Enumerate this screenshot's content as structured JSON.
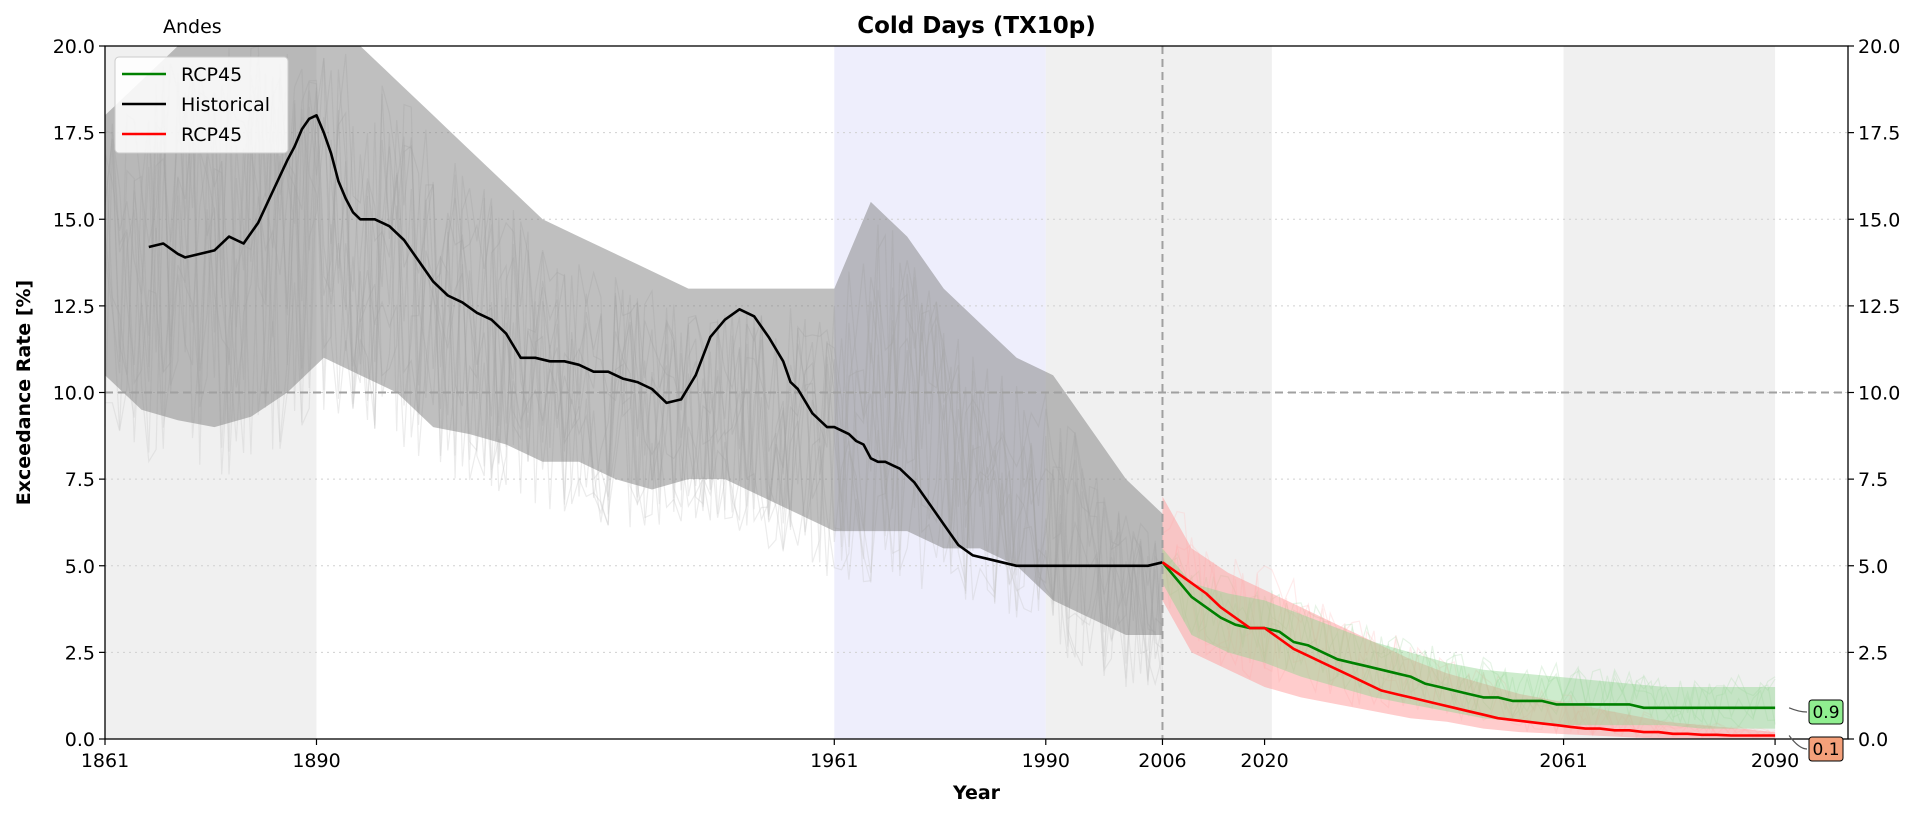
{
  "chart_data": {
    "type": "line",
    "title": "Cold Days (TX10p)",
    "region": "Andes",
    "xlabel": "Year",
    "ylabel": "Exceedance Rate [%]",
    "xlim": [
      1861,
      2100
    ],
    "ylim": [
      0,
      20
    ],
    "xticks": [
      "1861",
      "1890",
      "1961",
      "1990",
      "2006",
      "2020",
      "2061",
      "2090"
    ],
    "yticks": [
      "0.0",
      "2.5",
      "5.0",
      "7.5",
      "10.0",
      "12.5",
      "15.0",
      "17.5",
      "20.0"
    ],
    "grid": "horizontal-dotted",
    "reference_line": 10.0,
    "scenario_start_year": 2006,
    "legend": {
      "placement": "top-left",
      "entries": [
        {
          "name": "RCP45",
          "color": "#008000"
        },
        {
          "name": "Historical",
          "color": "#000000"
        },
        {
          "name": "RCP45",
          "color": "#ff0000"
        }
      ]
    },
    "shaded_periods": [
      {
        "from": 1861,
        "to": 1890,
        "color": "#f0f0f0"
      },
      {
        "from": 1961,
        "to": 1990,
        "color": "#eeeefc"
      },
      {
        "from": 1990,
        "to": 2006,
        "color": "#f0f0f0"
      },
      {
        "from": 2006,
        "to": 2021,
        "color": "#f0f0f0"
      },
      {
        "from": 2061,
        "to": 2090,
        "color": "#f0f0f0"
      }
    ],
    "series": [
      {
        "name": "Historical",
        "color": "#000000",
        "x": [
          1867,
          1869,
          1871,
          1872,
          1874,
          1876,
          1878,
          1880,
          1882,
          1884,
          1886,
          1887,
          1888,
          1889,
          1890,
          1891,
          1892,
          1893,
          1894,
          1895,
          1896,
          1897,
          1898,
          1900,
          1902,
          1904,
          1906,
          1908,
          1910,
          1912,
          1914,
          1916,
          1918,
          1920,
          1922,
          1924,
          1926,
          1928,
          1930,
          1932,
          1934,
          1936,
          1938,
          1940,
          1942,
          1944,
          1946,
          1948,
          1950,
          1952,
          1954,
          1955,
          1956,
          1958,
          1960,
          1961,
          1963,
          1964,
          1965,
          1966,
          1967,
          1968,
          1969,
          1970,
          1972,
          1974,
          1976,
          1978,
          1980,
          1982,
          1984,
          1986,
          1988,
          1990,
          1992,
          1994,
          1996,
          1998,
          2000,
          2002,
          2004,
          2006
        ],
        "values": [
          14.2,
          14.3,
          14.0,
          13.9,
          14.0,
          14.1,
          14.5,
          14.3,
          14.9,
          15.8,
          16.7,
          17.1,
          17.6,
          17.9,
          18.0,
          17.5,
          16.9,
          16.1,
          15.6,
          15.2,
          15.0,
          15.0,
          15.0,
          14.8,
          14.4,
          13.8,
          13.2,
          12.8,
          12.6,
          12.3,
          12.1,
          11.7,
          11.0,
          11.0,
          10.9,
          10.9,
          10.8,
          10.6,
          10.6,
          10.4,
          10.3,
          10.1,
          9.7,
          9.8,
          10.5,
          11.6,
          12.1,
          12.4,
          12.2,
          11.6,
          10.9,
          10.3,
          10.1,
          9.4,
          9.0,
          9.0,
          8.8,
          8.6,
          8.5,
          8.1,
          8.0,
          8.0,
          7.9,
          7.8,
          7.4,
          6.8,
          6.2,
          5.6,
          5.3,
          5.2,
          5.1,
          5.0,
          5.0,
          5.0,
          5.0,
          5.0,
          5.0,
          5.0,
          5.0,
          5.0,
          5.0,
          5.1
        ]
      },
      {
        "name": "RCP45",
        "color": "#008000",
        "x": [
          2006,
          2008,
          2010,
          2012,
          2014,
          2016,
          2018,
          2020,
          2022,
          2024,
          2026,
          2028,
          2030,
          2032,
          2034,
          2036,
          2038,
          2040,
          2042,
          2044,
          2046,
          2048,
          2050,
          2052,
          2054,
          2056,
          2058,
          2060,
          2062,
          2064,
          2066,
          2068,
          2070,
          2072,
          2074,
          2076,
          2078,
          2080,
          2082,
          2084,
          2086,
          2088,
          2090
        ],
        "values": [
          5.1,
          4.6,
          4.1,
          3.8,
          3.5,
          3.3,
          3.2,
          3.2,
          3.1,
          2.8,
          2.7,
          2.5,
          2.3,
          2.2,
          2.1,
          2.0,
          1.9,
          1.8,
          1.6,
          1.5,
          1.4,
          1.3,
          1.2,
          1.2,
          1.1,
          1.1,
          1.1,
          1.0,
          1.0,
          1.0,
          1.0,
          1.0,
          1.0,
          0.9,
          0.9,
          0.9,
          0.9,
          0.9,
          0.9,
          0.9,
          0.9,
          0.9,
          0.9
        ]
      },
      {
        "name": "RCP45",
        "color": "#ff0000",
        "x": [
          2006,
          2008,
          2010,
          2012,
          2014,
          2016,
          2018,
          2020,
          2022,
          2024,
          2026,
          2028,
          2030,
          2032,
          2034,
          2036,
          2038,
          2040,
          2042,
          2044,
          2046,
          2048,
          2050,
          2052,
          2054,
          2056,
          2058,
          2060,
          2062,
          2064,
          2066,
          2068,
          2070,
          2072,
          2074,
          2076,
          2078,
          2080,
          2082,
          2084,
          2086,
          2088,
          2090
        ],
        "values": [
          5.1,
          4.8,
          4.5,
          4.2,
          3.8,
          3.5,
          3.2,
          3.2,
          2.9,
          2.6,
          2.4,
          2.2,
          2.0,
          1.8,
          1.6,
          1.4,
          1.3,
          1.2,
          1.1,
          1.0,
          0.9,
          0.8,
          0.7,
          0.6,
          0.55,
          0.5,
          0.45,
          0.4,
          0.35,
          0.3,
          0.3,
          0.25,
          0.25,
          0.2,
          0.2,
          0.15,
          0.15,
          0.12,
          0.12,
          0.1,
          0.1,
          0.1,
          0.1
        ]
      }
    ],
    "bands": [
      {
        "series": "Historical",
        "color": "#808080",
        "x": [
          1861,
          1866,
          1871,
          1876,
          1881,
          1886,
          1891,
          1896,
          1901,
          1906,
          1911,
          1916,
          1921,
          1926,
          1931,
          1936,
          1941,
          1946,
          1951,
          1956,
          1961,
          1966,
          1971,
          1976,
          1981,
          1986,
          1991,
          1996,
          2001,
          2006
        ],
        "lower": [
          10.5,
          9.5,
          9.2,
          9.0,
          9.3,
          10.0,
          11.0,
          10.5,
          10.0,
          9.0,
          8.8,
          8.5,
          8.0,
          8.0,
          7.5,
          7.2,
          7.5,
          7.5,
          7.0,
          6.5,
          6.0,
          6.0,
          6.0,
          5.5,
          5.5,
          5.0,
          4.0,
          3.5,
          3.0,
          3.0
        ],
        "upper": [
          18.0,
          19.0,
          20.0,
          20.0,
          20.0,
          20.0,
          20.0,
          20.0,
          19.0,
          18.0,
          17.0,
          16.0,
          15.0,
          14.5,
          14.0,
          13.5,
          13.0,
          13.0,
          13.0,
          13.0,
          13.0,
          15.5,
          14.5,
          13.0,
          12.0,
          11.0,
          10.5,
          9.0,
          7.5,
          6.5
        ]
      },
      {
        "series": "RCP45",
        "color": "#ff9999",
        "x": [
          2006,
          2010,
          2015,
          2020,
          2025,
          2030,
          2035,
          2040,
          2045,
          2050,
          2055,
          2060,
          2065,
          2070,
          2075,
          2080,
          2085,
          2090
        ],
        "lower": [
          4.0,
          2.5,
          2.0,
          1.5,
          1.2,
          1.0,
          0.8,
          0.6,
          0.5,
          0.3,
          0.2,
          0.15,
          0.1,
          0.05,
          0.0,
          0.0,
          0.0,
          0.0
        ],
        "upper": [
          7.0,
          5.5,
          4.8,
          4.3,
          3.8,
          3.3,
          2.8,
          2.3,
          1.9,
          1.6,
          1.3,
          1.1,
          0.9,
          0.7,
          0.5,
          0.4,
          0.3,
          0.2
        ]
      },
      {
        "series": "RCP45",
        "color": "#90d590",
        "x": [
          2006,
          2010,
          2015,
          2020,
          2025,
          2030,
          2035,
          2040,
          2045,
          2050,
          2055,
          2060,
          2065,
          2070,
          2075,
          2080,
          2085,
          2090
        ],
        "lower": [
          4.5,
          3.0,
          2.5,
          2.2,
          1.8,
          1.5,
          1.2,
          1.0,
          0.8,
          0.6,
          0.5,
          0.4,
          0.4,
          0.4,
          0.4,
          0.3,
          0.3,
          0.3
        ],
        "upper": [
          5.5,
          4.5,
          4.2,
          4.0,
          3.6,
          3.2,
          2.8,
          2.5,
          2.2,
          2.0,
          1.9,
          1.8,
          1.7,
          1.6,
          1.5,
          1.5,
          1.5,
          1.5
        ]
      }
    ],
    "end_labels": [
      {
        "text": "0.9",
        "series": "RCP45 (green)",
        "color": "#90ee90",
        "value": 0.9
      },
      {
        "text": "0.1",
        "series": "RCP45 (red)",
        "color": "#f4a07a",
        "value": 0.1
      }
    ]
  }
}
